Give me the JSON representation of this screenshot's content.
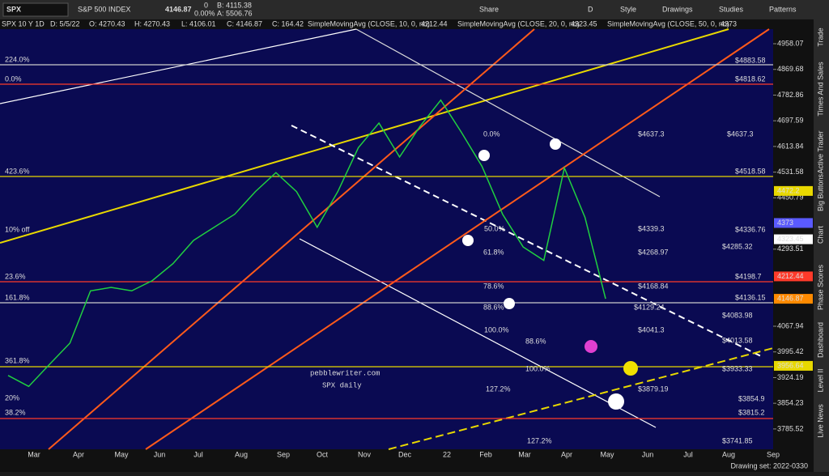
{
  "toolbar": {
    "symbol": "SPX",
    "name": "S&P 500 INDEX",
    "price": "4146.87",
    "change": "0",
    "change_pct": "0.00%",
    "bid": "B: 4115.38",
    "ask": "A: 5506.76",
    "buttons": [
      "Share",
      "D",
      "Style",
      "Drawings",
      "Studies",
      "Patterns"
    ]
  },
  "info": {
    "fields": [
      "SPX 10 Y 1D",
      "D: 5/5/22",
      "O: 4270.43",
      "H: 4270.43",
      "L: 4106.01",
      "C: 4146.87",
      "C: 164.42"
    ],
    "studies": [
      {
        "name": "SimpleMovingAvg (CLOSE, 10, 0, no)",
        "value": "4212.44",
        "color": "#ff4a3a"
      },
      {
        "name": "SimpleMovingAvg (CLOSE, 20, 0, no)",
        "value": "4323.45",
        "color": "#ffffff"
      },
      {
        "name": "SimpleMovingAvg (CLOSE, 50, 0, no)",
        "value": "4373",
        "color": "#8f8fff"
      }
    ]
  },
  "price_axis": {
    "ticks": [
      4958.07,
      4869.68,
      4782.86,
      4697.59,
      4613.84,
      4531.58,
      4450.79,
      4293.51,
      4067.94,
      3995.42,
      3924.19,
      3854.23,
      3785.52
    ],
    "badges": [
      {
        "value": 4472.2,
        "color": "#e8d800"
      },
      {
        "value": 4373,
        "color": "#5a5aff"
      },
      {
        "value": 4323.45,
        "color": "#ffffff"
      },
      {
        "value": 4212.44,
        "color": "#ff3a2a"
      },
      {
        "value": 4146.87,
        "color": "#ff8a00"
      },
      {
        "value": 3956.64,
        "color": "#e8d800"
      }
    ]
  },
  "price_closes": [
    3930,
    3900,
    3960,
    4020,
    4170,
    4180,
    4170,
    4200,
    4250,
    4320,
    4360,
    4400,
    4470,
    4530,
    4470,
    4360,
    4470,
    4610,
    4690,
    4580,
    4680,
    4766,
    4660,
    4550,
    4400,
    4300,
    4260,
    4545,
    4390,
    4146.87
  ],
  "left_labels": [
    "224.0%",
    "0.0%",
    "423.6%",
    "10% off",
    "23.6%",
    "161.8%",
    "361.8%",
    "20%",
    "38.2%"
  ],
  "mid_labels": [
    "0.0%",
    "50.0%",
    "61.8%",
    "78.6%",
    "88.6%",
    "100.0%",
    "88.6%",
    "100.0%",
    "127.2%",
    "127.2%"
  ],
  "level_labels": [
    "$4883.58",
    "$4818.62",
    "$4637.3",
    "$4637.3",
    "$4518.58",
    "$4339.3",
    "$4336.76",
    "$4285.32",
    "$4268.97",
    "$4198.7",
    "$4168.84",
    "$4136.15",
    "$4129.24",
    "$4083.98",
    "$4041.3",
    "$4013.58",
    "$3933.33",
    "$3879.19",
    "$3854.9",
    "$3815.2",
    "$3741.85"
  ],
  "watermark": [
    "pebblewriter.com",
    "SPX daily"
  ],
  "months": [
    "Mar",
    "Apr",
    "May",
    "Jun",
    "Jul",
    "Aug",
    "Sep",
    "Oct",
    "Nov",
    "Dec",
    "22",
    "Feb",
    "Mar",
    "Apr",
    "May",
    "Jun",
    "Jul",
    "Aug",
    "Sep"
  ],
  "side_tabs": [
    "Trade",
    "Times And Sales",
    "Active Trader",
    "Big Buttons",
    "Chart",
    "Phase Scores",
    "Dashboard",
    "Level II",
    "Live News"
  ],
  "status": "Drawing set: 2022-0330"
}
